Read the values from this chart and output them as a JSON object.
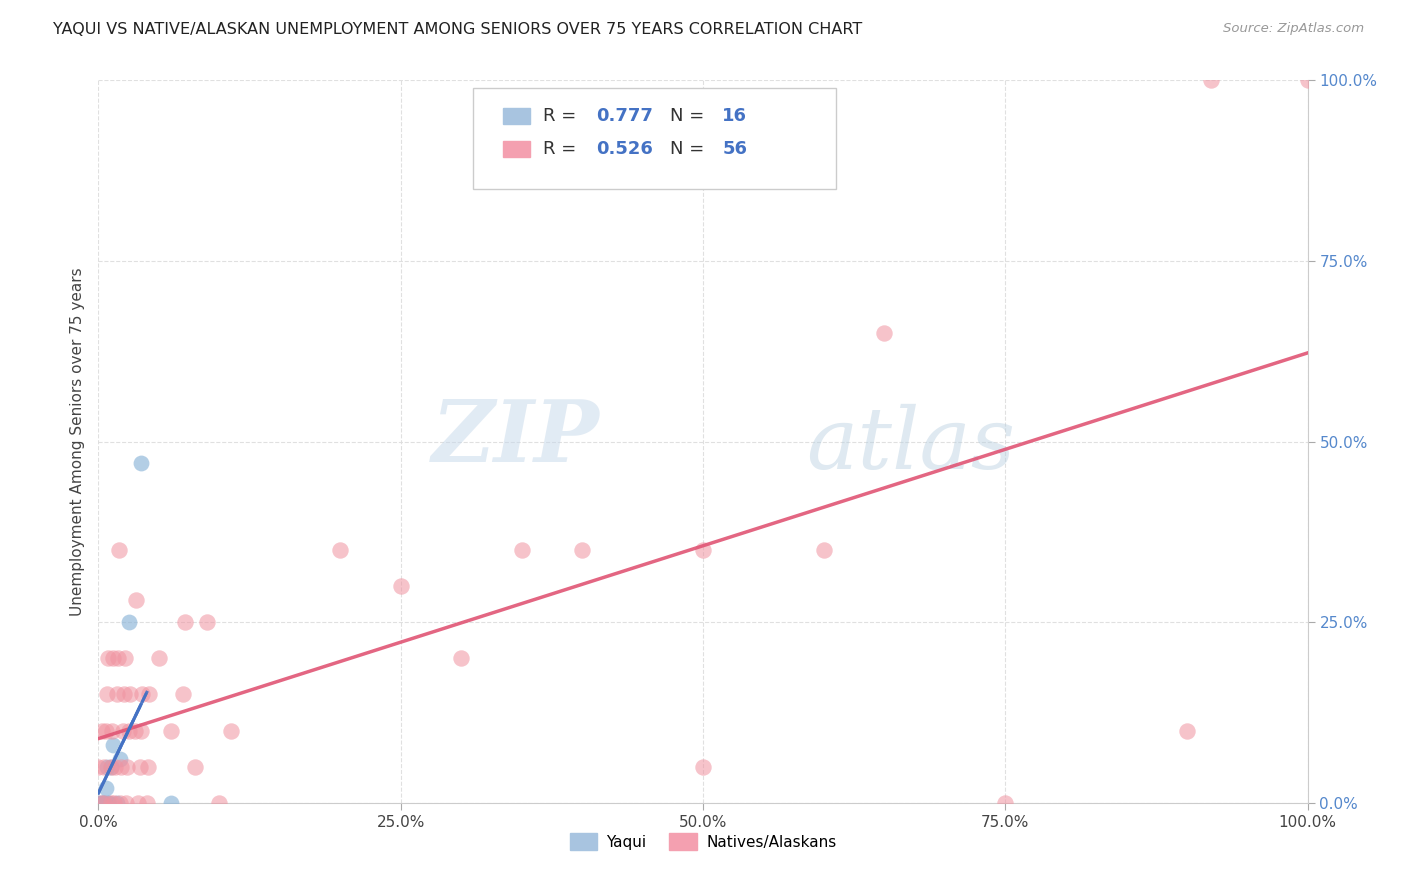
{
  "title": "YAQUI VS NATIVE/ALASKAN UNEMPLOYMENT AMONG SENIORS OVER 75 YEARS CORRELATION CHART",
  "source": "Source: ZipAtlas.com",
  "ylabel": "Unemployment Among Seniors over 75 years",
  "xlim": [
    0,
    1.0
  ],
  "ylim": [
    0,
    1.0
  ],
  "xtick_vals": [
    0.0,
    0.25,
    0.5,
    0.75,
    1.0
  ],
  "ytick_vals": [
    0.0,
    0.25,
    0.5,
    0.75,
    1.0
  ],
  "watermark_zip": "ZIP",
  "watermark_atlas": "atlas",
  "yaqui_color": "#8ab4d8",
  "native_color": "#f093a0",
  "background_color": "#ffffff",
  "yaqui_line_color": "#4472c4",
  "native_line_color": "#e05575",
  "yaqui_scatter": [
    [
      0.0,
      0.0
    ],
    [
      0.002,
      0.0
    ],
    [
      0.003,
      0.0
    ],
    [
      0.004,
      0.0
    ],
    [
      0.005,
      0.0
    ],
    [
      0.006,
      0.02
    ],
    [
      0.007,
      0.05
    ],
    [
      0.008,
      0.0
    ],
    [
      0.009,
      0.0
    ],
    [
      0.01,
      0.05
    ],
    [
      0.012,
      0.08
    ],
    [
      0.015,
      0.0
    ],
    [
      0.018,
      0.06
    ],
    [
      0.025,
      0.25
    ],
    [
      0.035,
      0.47
    ],
    [
      0.06,
      0.0
    ]
  ],
  "native_scatter": [
    [
      0.0,
      0.05
    ],
    [
      0.002,
      0.0
    ],
    [
      0.003,
      0.1
    ],
    [
      0.005,
      0.0
    ],
    [
      0.005,
      0.05
    ],
    [
      0.006,
      0.1
    ],
    [
      0.007,
      0.15
    ],
    [
      0.008,
      0.2
    ],
    [
      0.01,
      0.0
    ],
    [
      0.01,
      0.05
    ],
    [
      0.011,
      0.1
    ],
    [
      0.012,
      0.2
    ],
    [
      0.013,
      0.0
    ],
    [
      0.014,
      0.05
    ],
    [
      0.015,
      0.15
    ],
    [
      0.016,
      0.2
    ],
    [
      0.017,
      0.35
    ],
    [
      0.018,
      0.0
    ],
    [
      0.019,
      0.05
    ],
    [
      0.02,
      0.1
    ],
    [
      0.021,
      0.15
    ],
    [
      0.022,
      0.2
    ],
    [
      0.023,
      0.0
    ],
    [
      0.024,
      0.05
    ],
    [
      0.025,
      0.1
    ],
    [
      0.026,
      0.15
    ],
    [
      0.03,
      0.1
    ],
    [
      0.031,
      0.28
    ],
    [
      0.033,
      0.0
    ],
    [
      0.034,
      0.05
    ],
    [
      0.035,
      0.1
    ],
    [
      0.036,
      0.15
    ],
    [
      0.04,
      0.0
    ],
    [
      0.041,
      0.05
    ],
    [
      0.042,
      0.15
    ],
    [
      0.05,
      0.2
    ],
    [
      0.06,
      0.1
    ],
    [
      0.07,
      0.15
    ],
    [
      0.072,
      0.25
    ],
    [
      0.08,
      0.05
    ],
    [
      0.09,
      0.25
    ],
    [
      0.1,
      0.0
    ],
    [
      0.11,
      0.1
    ],
    [
      0.2,
      0.35
    ],
    [
      0.25,
      0.3
    ],
    [
      0.3,
      0.2
    ],
    [
      0.35,
      0.35
    ],
    [
      0.4,
      0.35
    ],
    [
      0.5,
      0.35
    ],
    [
      0.5,
      0.05
    ],
    [
      0.6,
      0.35
    ],
    [
      0.65,
      0.65
    ],
    [
      0.75,
      0.0
    ],
    [
      0.9,
      0.1
    ],
    [
      0.92,
      1.0
    ],
    [
      1.0,
      1.0
    ]
  ]
}
